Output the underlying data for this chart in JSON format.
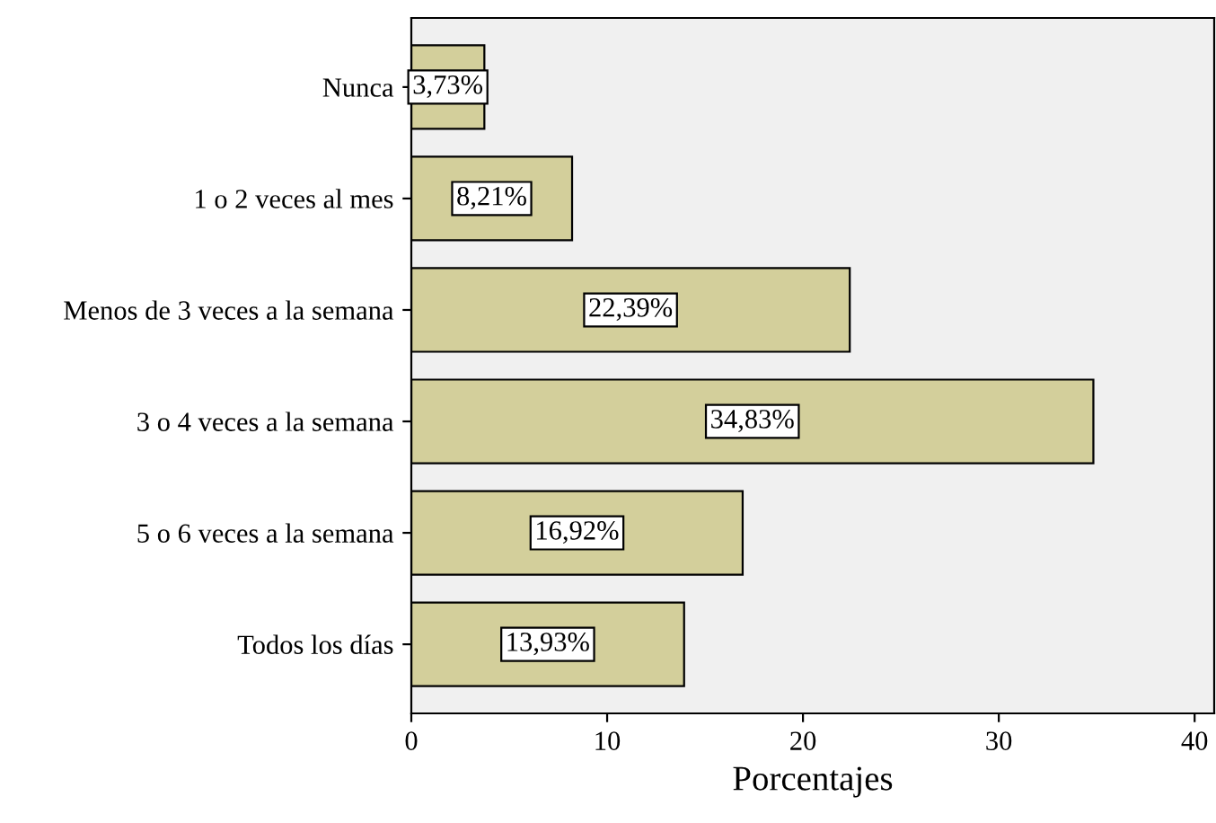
{
  "chart_data": {
    "type": "bar",
    "orientation": "horizontal",
    "xlabel": "Porcentajes",
    "categories": [
      "Nunca",
      "1 o 2 veces al mes",
      "Menos de 3 veces a la semana",
      "3 o 4 veces a la semana",
      "5 o 6 veces a la semana",
      "Todos los días"
    ],
    "values": [
      3.73,
      8.21,
      22.39,
      34.83,
      16.92,
      13.93
    ],
    "value_labels": [
      "3,73%",
      "8,21%",
      "22,39%",
      "34,83%",
      "16,92%",
      "13,93%"
    ],
    "color": "#d3cf9b",
    "xlim": [
      0,
      41
    ],
    "xticks": [
      0,
      10,
      20,
      30,
      40
    ],
    "grid": false
  }
}
